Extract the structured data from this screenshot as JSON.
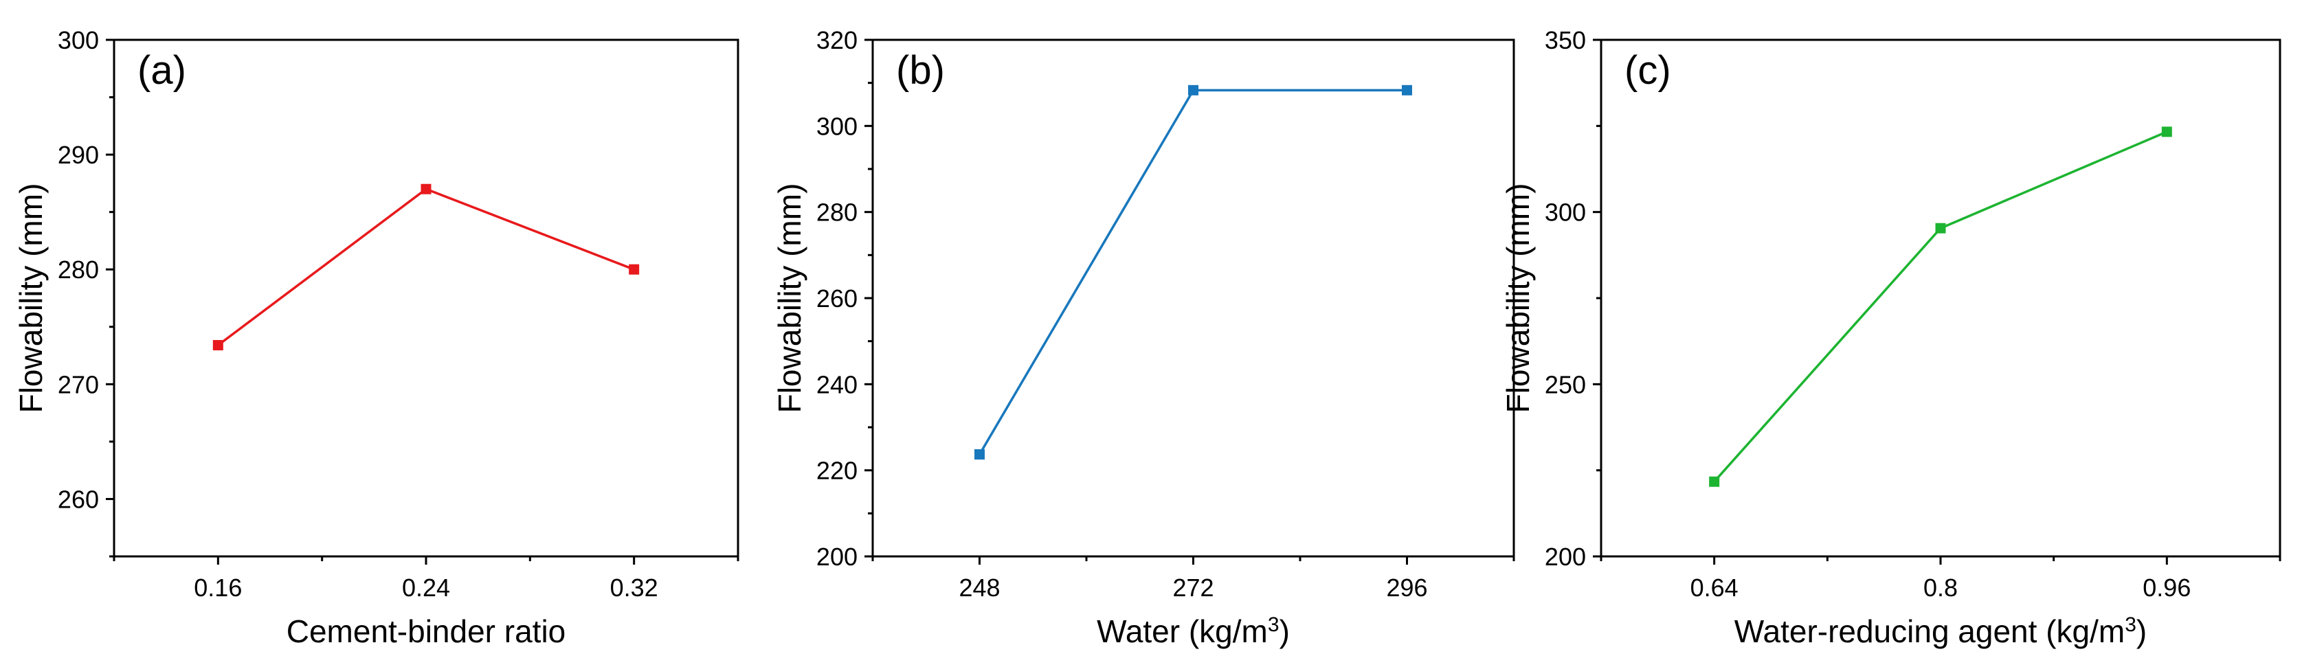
{
  "chart_data": [
    {
      "type": "line",
      "panel_label": "(a)",
      "xlabel": "Cement-binder ratio",
      "ylabel": "Flowability (mm)",
      "categories": [
        "0.16",
        "0.24",
        "0.32"
      ],
      "x": [
        0.16,
        0.24,
        0.32
      ],
      "values": [
        273.4,
        287.0,
        280.0
      ],
      "xlim": [
        0.12,
        0.36
      ],
      "ylim": [
        255,
        300
      ],
      "yticks": [
        260,
        270,
        280,
        290,
        300
      ],
      "color": "#e8191c",
      "grid": false
    },
    {
      "type": "line",
      "panel_label": "(b)",
      "xlabel": "Water (kg/m³)",
      "ylabel": "Flowability (mm)",
      "categories": [
        "248",
        "272",
        "296"
      ],
      "x": [
        248,
        272,
        296
      ],
      "values": [
        223.7,
        308.3,
        308.3
      ],
      "xlim": [
        236,
        308
      ],
      "ylim": [
        200,
        320
      ],
      "yticks": [
        200,
        220,
        240,
        260,
        280,
        300,
        320
      ],
      "color": "#1878bd",
      "grid": false
    },
    {
      "type": "line",
      "panel_label": "(c)",
      "xlabel": "Water-reducing agent (kg/m³)",
      "ylabel": "Flowability (mm)",
      "categories": [
        "0.64",
        "0.8",
        "0.96"
      ],
      "x": [
        0.64,
        0.8,
        0.96
      ],
      "values": [
        221.7,
        295.3,
        323.3
      ],
      "xlim": [
        0.56,
        1.04
      ],
      "ylim": [
        200,
        350
      ],
      "yticks": [
        200,
        250,
        300,
        350
      ],
      "color": "#1db431",
      "grid": false
    }
  ]
}
